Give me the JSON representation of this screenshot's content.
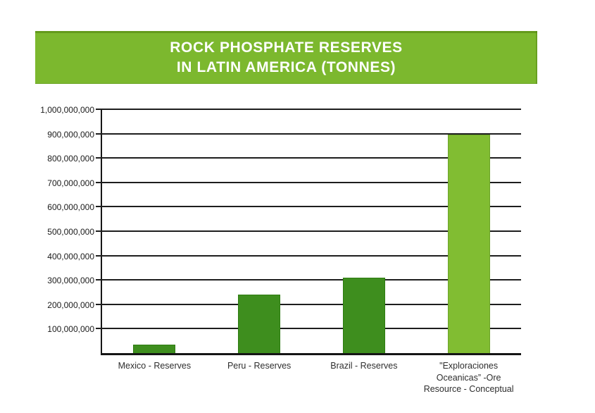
{
  "banner": {
    "title_line1": "ROCK PHOSPHATE RESERVES",
    "title_line2": "IN LATIN AMERICA (TONNES)",
    "bg_color": "#7cb82e",
    "text_color": "#ffffff"
  },
  "chart_data": {
    "type": "bar",
    "title": "ROCK PHOSPHATE RESERVES IN LATIN AMERICA (TONNES)",
    "xlabel": "",
    "ylabel": "",
    "categories": [
      "Mexico - Reserves",
      "Peru - Reserves",
      "Brazil - Reserves",
      "\"Exploraciones\nOceanicas” -Ore\nResource - Conceptual"
    ],
    "values": [
      35000000,
      240000000,
      310000000,
      895000000
    ],
    "units": "tonnes",
    "bar_colors": [
      "#3e8e1e",
      "#3e8e1e",
      "#3e8e1e",
      "#81bd32"
    ],
    "bar_edge_colors": [
      "#2e7c12",
      "#2e7c12",
      "#2e7c12",
      "#6da32a"
    ],
    "ylim": [
      0,
      1000000000
    ],
    "ytick_step": 100000000,
    "ytick_labels": [
      "100,000,000",
      "200,000,000",
      "300,000,000",
      "400,000,000",
      "500,000,000",
      "600,000,000",
      "700,000,000",
      "800,000,000",
      "900,000,000",
      "1,000,000,000"
    ],
    "grid": true,
    "legend_position": "none"
  }
}
